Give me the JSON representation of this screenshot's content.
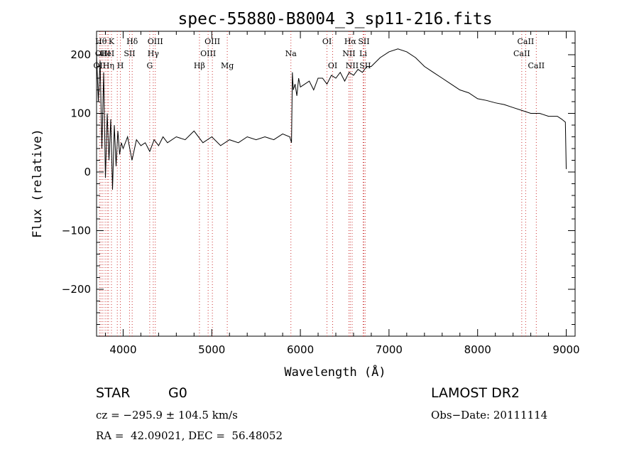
{
  "chart_data": {
    "type": "line",
    "title": "spec-55880-B8004_3_sp11-216.fits",
    "xlabel": "Wavelength (Å)",
    "ylabel": "Flux (relative)",
    "xlim": [
      3700,
      9100
    ],
    "ylim": [
      -280,
      240
    ],
    "xticks": [
      4000,
      5000,
      6000,
      7000,
      8000,
      9000
    ],
    "yticks": [
      -200,
      -100,
      0,
      100,
      200
    ],
    "ytick_labels": [
      "−200",
      "−100",
      "0",
      "100",
      "200"
    ],
    "grid": false,
    "series": [
      {
        "x": [
          3700,
          3720,
          3740,
          3760,
          3780,
          3800,
          3820,
          3840,
          3860,
          3880,
          3900,
          3920,
          3940,
          3960,
          3980,
          4000,
          4050,
          4100,
          4150,
          4200,
          4250,
          4300,
          4350,
          4400,
          4450,
          4500,
          4600,
          4700,
          4800,
          4900,
          5000,
          5100,
          5200,
          5300,
          5400,
          5500,
          5600,
          5700,
          5800,
          5880,
          5900,
          5910,
          5920,
          5940,
          5960,
          5980,
          6000,
          6050,
          6100,
          6150,
          6200,
          6250,
          6300,
          6350,
          6400,
          6450,
          6500,
          6550,
          6600,
          6650,
          6700,
          6750,
          6800,
          6900,
          7000,
          7100,
          7200,
          7300,
          7400,
          7500,
          7600,
          7700,
          7800,
          7900,
          8000,
          8100,
          8200,
          8300,
          8400,
          8500,
          8600,
          8700,
          8800,
          8900,
          8950,
          8990,
          9000
        ],
        "y": [
          200,
          120,
          190,
          40,
          170,
          -10,
          100,
          20,
          90,
          -30,
          80,
          10,
          70,
          30,
          50,
          40,
          60,
          20,
          55,
          45,
          50,
          35,
          55,
          45,
          60,
          50,
          60,
          55,
          70,
          50,
          60,
          45,
          55,
          50,
          60,
          55,
          60,
          55,
          65,
          60,
          50,
          170,
          140,
          150,
          130,
          160,
          145,
          150,
          155,
          140,
          160,
          160,
          150,
          165,
          160,
          170,
          155,
          170,
          165,
          175,
          170,
          180,
          180,
          195,
          205,
          210,
          205,
          195,
          180,
          170,
          160,
          150,
          140,
          135,
          125,
          122,
          118,
          115,
          110,
          105,
          100,
          100,
          95,
          95,
          90,
          85,
          5
        ]
      }
    ],
    "lines": [
      {
        "wl": 3734,
        "label": "OII",
        "row": 3
      },
      {
        "wl": 3750,
        "label": "Hθ",
        "row": 1
      },
      {
        "wl": 3771,
        "label": "OIII",
        "row": 2
      },
      {
        "wl": 3797,
        "label": "",
        "row": 0
      },
      {
        "wl": 3820,
        "label": "HeI",
        "row": 2
      },
      {
        "wl": 3835,
        "label": "Hη",
        "row": 3
      },
      {
        "wl": 3868,
        "label": "K",
        "row": 1
      },
      {
        "wl": 3934,
        "label": "",
        "row": 0
      },
      {
        "wl": 3969,
        "label": "H",
        "row": 3
      },
      {
        "wl": 4072,
        "label": "SII",
        "row": 2
      },
      {
        "wl": 4102,
        "label": "Hδ",
        "row": 1
      },
      {
        "wl": 4300,
        "label": "G",
        "row": 3
      },
      {
        "wl": 4340,
        "label": "Hγ",
        "row": 2
      },
      {
        "wl": 4363,
        "label": "OIII",
        "row": 1
      },
      {
        "wl": 4861,
        "label": "Hβ",
        "row": 3
      },
      {
        "wl": 4959,
        "label": "OIII",
        "row": 2
      },
      {
        "wl": 5007,
        "label": "OIII",
        "row": 1
      },
      {
        "wl": 5175,
        "label": "Mg",
        "row": 3
      },
      {
        "wl": 5893,
        "label": "Na",
        "row": 2
      },
      {
        "wl": 6300,
        "label": "OI",
        "row": 1
      },
      {
        "wl": 6364,
        "label": "OI",
        "row": 3
      },
      {
        "wl": 6548,
        "label": "NII",
        "row": 2
      },
      {
        "wl": 6563,
        "label": "Hα",
        "row": 1
      },
      {
        "wl": 6584,
        "label": "NII",
        "row": 3
      },
      {
        "wl": 6708,
        "label": "Li",
        "row": 2
      },
      {
        "wl": 6716,
        "label": "SII",
        "row": 1
      },
      {
        "wl": 6731,
        "label": "SII",
        "row": 3
      },
      {
        "wl": 8498,
        "label": "CaII",
        "row": 2
      },
      {
        "wl": 8542,
        "label": "CaII",
        "row": 1
      },
      {
        "wl": 8662,
        "label": "CaII",
        "row": 3
      }
    ]
  },
  "info": {
    "object_type": "STAR",
    "subclass": "G0",
    "survey": "LAMOST DR2",
    "cz": "cz = −295.9 ± 104.5 km/s",
    "obs_date": "Obs−Date: 20111114",
    "radec": "RA =  42.09021, DEC =  56.48052"
  },
  "colors": {
    "line": "#000000",
    "marker": "#cc3333",
    "axes": "#000000"
  }
}
